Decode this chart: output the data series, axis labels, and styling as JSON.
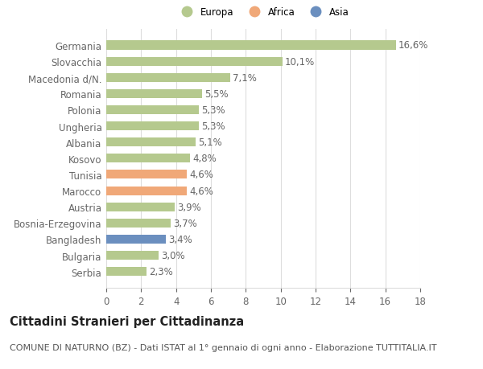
{
  "categories": [
    "Serbia",
    "Bulgaria",
    "Bangladesh",
    "Bosnia-Erzegovina",
    "Austria",
    "Marocco",
    "Tunisia",
    "Kosovo",
    "Albania",
    "Ungheria",
    "Polonia",
    "Romania",
    "Macedonia d/N.",
    "Slovacchia",
    "Germania"
  ],
  "values": [
    2.3,
    3.0,
    3.4,
    3.7,
    3.9,
    4.6,
    4.6,
    4.8,
    5.1,
    5.3,
    5.3,
    5.5,
    7.1,
    10.1,
    16.6
  ],
  "labels": [
    "2,3%",
    "3,0%",
    "3,4%",
    "3,7%",
    "3,9%",
    "4,6%",
    "4,6%",
    "4,8%",
    "5,1%",
    "5,3%",
    "5,3%",
    "5,5%",
    "7,1%",
    "10,1%",
    "16,6%"
  ],
  "colors": [
    "#b5c98e",
    "#b5c98e",
    "#6b8fbf",
    "#b5c98e",
    "#b5c98e",
    "#f0a878",
    "#f0a878",
    "#b5c98e",
    "#b5c98e",
    "#b5c98e",
    "#b5c98e",
    "#b5c98e",
    "#b5c98e",
    "#b5c98e",
    "#b5c98e"
  ],
  "legend_labels": [
    "Europa",
    "Africa",
    "Asia"
  ],
  "legend_colors": [
    "#b5c98e",
    "#f0a878",
    "#6b8fbf"
  ],
  "title": "Cittadini Stranieri per Cittadinanza",
  "subtitle": "COMUNE DI NATURNO (BZ) - Dati ISTAT al 1° gennaio di ogni anno - Elaborazione TUTTITALIA.IT",
  "xlim": [
    0,
    18
  ],
  "xticks": [
    0,
    2,
    4,
    6,
    8,
    10,
    12,
    14,
    16,
    18
  ],
  "background_color": "#ffffff",
  "grid_color": "#dddddd",
  "bar_height": 0.55,
  "label_fontsize": 8.5,
  "tick_fontsize": 8.5,
  "title_fontsize": 10.5,
  "subtitle_fontsize": 8.0
}
